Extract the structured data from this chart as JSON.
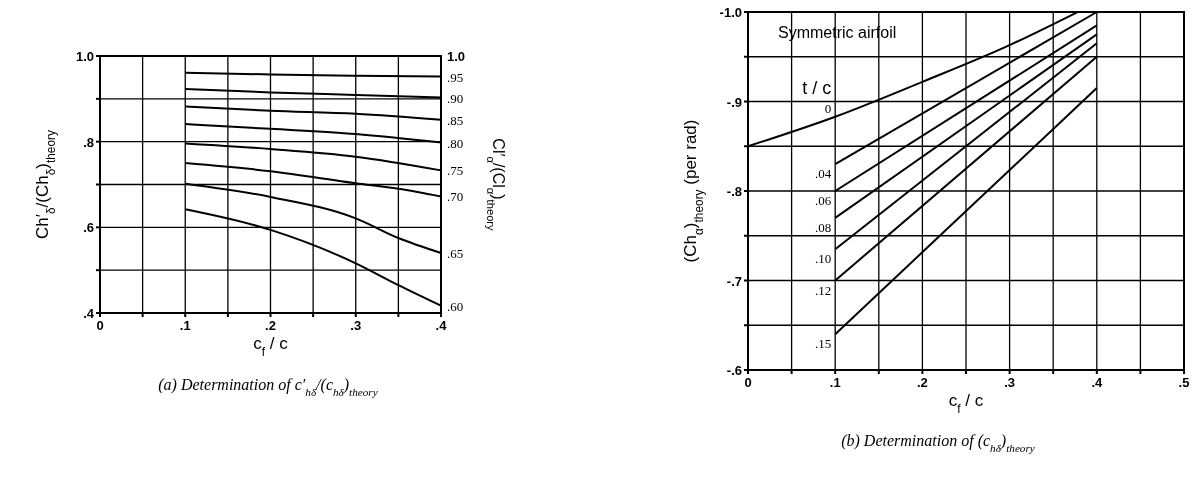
{
  "chart_data": [
    {
      "type": "line",
      "title": "(a) Determination of c′$_{hδ}$/(c$_{hδ}$)$_{theory}$",
      "xlabel": "c$_{f}$ / c",
      "ylabel": "Ch′$_{δ}$/(Ch$_{δ}$)$_{theory}$",
      "y2label": "Cl′$_{α}$/(Cl$_{α}$)$_{theory}$",
      "xlim": [
        0,
        0.4
      ],
      "ylim": [
        0.4,
        1.0
      ],
      "xticks": [
        0,
        {
          "value": 0.05,
          "label": null
        },
        {
          "value": 0.1,
          "label": ".1"
        },
        {
          "value": 0.15,
          "label": null
        },
        {
          "value": 0.2,
          "label": ".2"
        },
        {
          "value": 0.25,
          "label": null
        },
        {
          "value": 0.3,
          "label": ".3"
        },
        {
          "value": 0.35,
          "label": null
        },
        {
          "value": 0.4,
          "label": ".4"
        }
      ],
      "yticks": [
        {
          "value": 0.4,
          "label": ".4"
        },
        {
          "value": 0.5,
          "label": null
        },
        {
          "value": 0.6,
          "label": ".6"
        },
        {
          "value": 0.7,
          "label": null
        },
        {
          "value": 0.8,
          "label": ".8"
        },
        {
          "value": 0.9,
          "label": null
        },
        {
          "value": 1.0,
          "label": "1.0"
        }
      ],
      "grid": true,
      "marker": "none",
      "line_style": "solid",
      "annotations": [
        "1.0"
      ],
      "series": [
        {
          "name": ".95",
          "color": "#000000",
          "x": [
            0.1,
            0.2,
            0.3,
            0.4
          ],
          "values": [
            0.961,
            0.957,
            0.954,
            0.952
          ]
        },
        {
          "name": ".90",
          "color": "#000000",
          "x": [
            0.1,
            0.2,
            0.3,
            0.4
          ],
          "values": [
            0.923,
            0.915,
            0.909,
            0.903
          ]
        },
        {
          "name": ".85",
          "color": "#000000",
          "x": [
            0.1,
            0.2,
            0.3,
            0.4
          ],
          "values": [
            0.882,
            0.872,
            0.865,
            0.851
          ]
        },
        {
          "name": ".80",
          "color": "#000000",
          "x": [
            0.1,
            0.2,
            0.3,
            0.4
          ],
          "values": [
            0.841,
            0.83,
            0.818,
            0.798
          ]
        },
        {
          "name": ".75",
          "color": "#000000",
          "x": [
            0.1,
            0.2,
            0.3,
            0.4
          ],
          "values": [
            0.796,
            0.783,
            0.765,
            0.733
          ]
        },
        {
          "name": ".70",
          "color": "#000000",
          "x": [
            0.1,
            0.2,
            0.3,
            0.35,
            0.4
          ],
          "values": [
            0.75,
            0.731,
            0.703,
            0.69,
            0.672
          ]
        },
        {
          "name": ".65",
          "color": "#000000",
          "x": [
            0.1,
            0.2,
            0.3,
            0.35,
            0.4
          ],
          "values": [
            0.702,
            0.671,
            0.621,
            0.575,
            0.54
          ]
        },
        {
          "name": ".60",
          "color": "#000000",
          "x": [
            0.1,
            0.2,
            0.3,
            0.35,
            0.4
          ],
          "values": [
            0.642,
            0.594,
            0.516,
            0.465,
            0.417
          ]
        }
      ]
    },
    {
      "type": "line",
      "title": "(b) Determination of (c$_{hδ}$)$_{theory}$",
      "xlabel": "c$_{f}$ / c",
      "ylabel": "(Ch$_{α}$)$_{theory}$ (per rad)",
      "legend_title": "t / c",
      "xlim": [
        0,
        0.5
      ],
      "ylim": [
        -0.6,
        -1.0
      ],
      "xticks": [
        0,
        {
          "value": 0.05,
          "label": null
        },
        {
          "value": 0.1,
          "label": ".1"
        },
        {
          "value": 0.15,
          "label": null
        },
        {
          "value": 0.2,
          "label": ".2"
        },
        {
          "value": 0.25,
          "label": null
        },
        {
          "value": 0.3,
          "label": ".3"
        },
        {
          "value": 0.35,
          "label": null
        },
        {
          "value": 0.4,
          "label": ".4"
        },
        {
          "value": 0.45,
          "label": null
        },
        {
          "value": 0.5,
          "label": ".5"
        }
      ],
      "yticks": [
        {
          "value": -0.6,
          "label": "-.6"
        },
        {
          "value": -0.65,
          "label": null
        },
        {
          "value": -0.7,
          "label": "-.7"
        },
        {
          "value": -0.75,
          "label": null
        },
        {
          "value": -0.8,
          "label": "-.8"
        },
        {
          "value": -0.85,
          "label": null
        },
        {
          "value": -0.9,
          "label": "-.9"
        },
        {
          "value": -0.95,
          "label": null
        },
        {
          "value": -1.0,
          "label": "-1.0"
        }
      ],
      "grid": true,
      "marker": "none",
      "line_style": "solid",
      "annotations": [
        "Symmetric airfoil"
      ],
      "series": [
        {
          "name": "0",
          "color": "#000000",
          "x": [
            0,
            0.1,
            0.2,
            0.3,
            0.378
          ],
          "values": [
            -0.85,
            -0.883,
            -0.922,
            -0.963,
            -1.0
          ]
        },
        {
          "name": ".04",
          "color": "#000000",
          "x": [
            0.1,
            0.4
          ],
          "values": [
            -0.83,
            -1.0
          ]
        },
        {
          "name": ".06",
          "color": "#000000",
          "x": [
            0.1,
            0.4
          ],
          "values": [
            -0.8,
            -0.985
          ]
        },
        {
          "name": ".08",
          "color": "#000000",
          "x": [
            0.1,
            0.4
          ],
          "values": [
            -0.77,
            -0.975
          ]
        },
        {
          "name": ".10",
          "color": "#000000",
          "x": [
            0.1,
            0.4
          ],
          "values": [
            -0.735,
            -0.965
          ]
        },
        {
          "name": ".12",
          "color": "#000000",
          "x": [
            0.1,
            0.4
          ],
          "values": [
            -0.7,
            -0.95
          ]
        },
        {
          "name": ".15",
          "color": "#000000",
          "x": [
            0.1,
            0.4
          ],
          "values": [
            -0.64,
            -0.915
          ]
        }
      ]
    }
  ]
}
